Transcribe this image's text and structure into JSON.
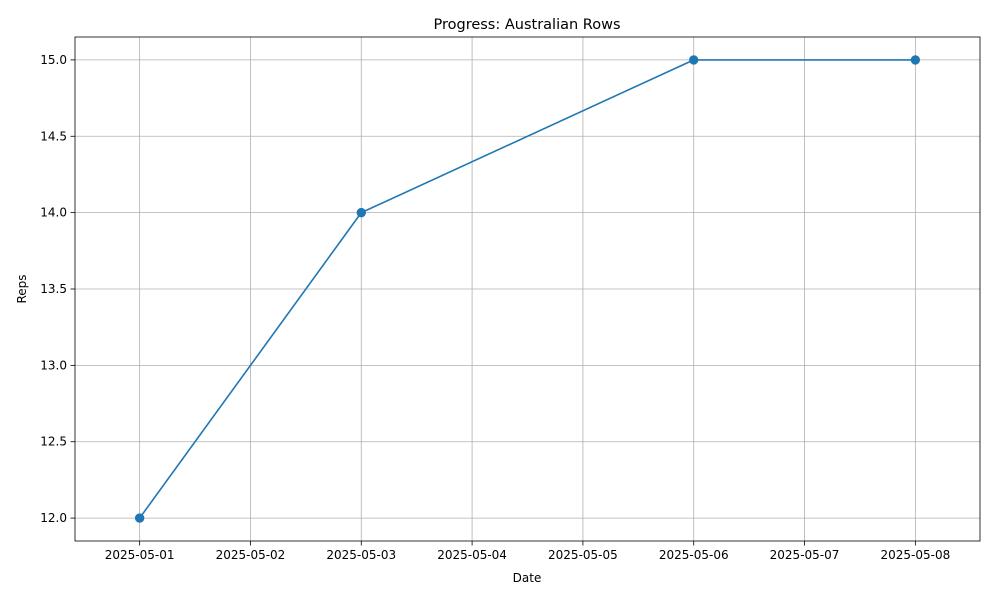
{
  "chart_data": {
    "type": "line",
    "title": "Progress: Australian Rows",
    "xlabel": "Date",
    "ylabel": "Reps",
    "x": [
      "2025-05-01",
      "2025-05-03",
      "2025-05-06",
      "2025-05-08"
    ],
    "series": [
      {
        "values": [
          12,
          14,
          15,
          15
        ],
        "color": "#1f77b4",
        "marker": "circle"
      }
    ],
    "x_ticks": [
      "2025-05-01",
      "2025-05-02",
      "2025-05-03",
      "2025-05-04",
      "2025-05-05",
      "2025-05-06",
      "2025-05-07",
      "2025-05-08"
    ],
    "y_ticks": [
      "12.0",
      "12.5",
      "13.0",
      "13.5",
      "14.0",
      "14.5",
      "15.0"
    ],
    "xlim": [
      "2025-04-30T10:00",
      "2025-05-08T14:00"
    ],
    "ylim": [
      11.85,
      15.15
    ],
    "grid": true,
    "legend": "none"
  }
}
